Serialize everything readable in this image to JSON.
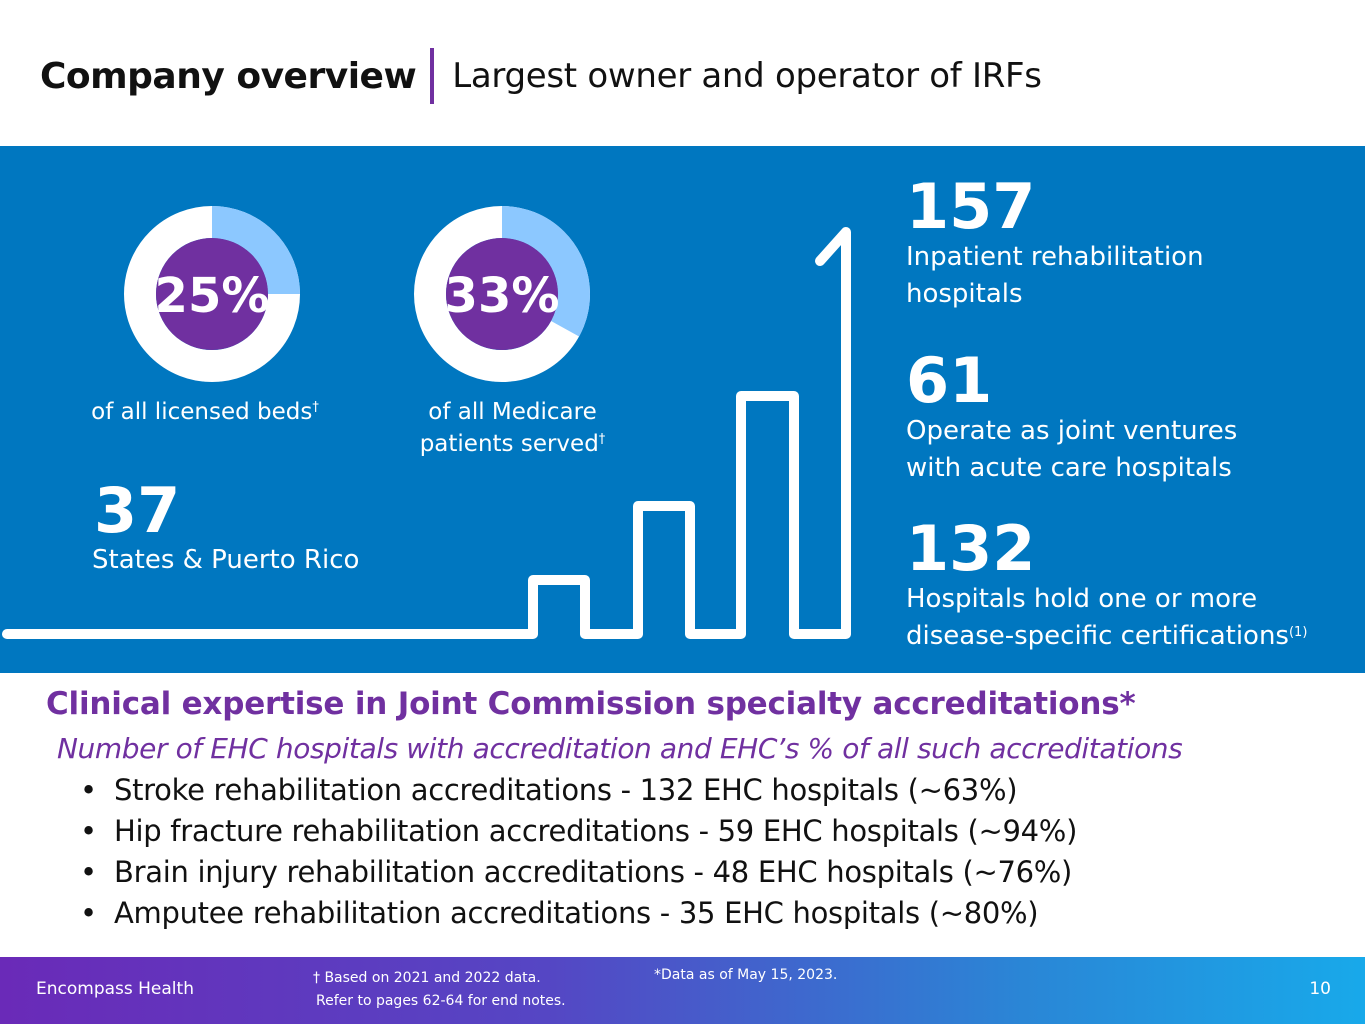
{
  "header": {
    "title": "Company overview",
    "subtitle": "Largest owner and operator of IRFs"
  },
  "colors": {
    "panel": "#0077c0",
    "accent": "#7030a0",
    "donut_light": "#8cc8ff",
    "donut_center": "#7030a0"
  },
  "stats": {
    "beds": {
      "value": "25%",
      "fraction": 0.25,
      "caption": "of all licensed beds",
      "dagger": "†"
    },
    "medicare": {
      "value": "33%",
      "fraction": 0.33,
      "caption_line1": "of all Medicare",
      "caption_line2": "patients served",
      "dagger": "†"
    },
    "states": {
      "value": "37",
      "label": "States & Puerto Rico"
    },
    "hospitals": {
      "value": "157",
      "label_line1": "Inpatient rehabilitation",
      "label_line2": "hospitals"
    },
    "joint_ventures": {
      "value": "61",
      "label_line1": "Operate as joint ventures",
      "label_line2": "with acute care hospitals"
    },
    "certifications": {
      "value": "132",
      "label_line1": "Hospitals hold one or more",
      "label_line2": "disease-specific certifications",
      "footnote": "(1)"
    }
  },
  "accreditation": {
    "title": "Clinical expertise in Joint Commission specialty accreditations*",
    "subtitle": "Number of EHC hospitals with accreditation and EHC’s % of all such accreditations",
    "items": [
      "Stroke rehabilitation accreditations - 132 EHC hospitals (~63%)",
      "Hip fracture rehabilitation accreditations - 59 EHC hospitals (~94%)",
      "Brain injury rehabilitation accreditations - 48 EHC hospitals (~76%)",
      "Amputee rehabilitation accreditations - 35 EHC hospitals (~80%)"
    ],
    "bullet": "•"
  },
  "footer": {
    "company": "Encompass Health",
    "note_line1": "† Based on 2021 and 2022 data.",
    "note_line2": "Refer to pages 62-64 for end notes.",
    "data_note": "*Data as of May 15, 2023.",
    "page": "10"
  }
}
